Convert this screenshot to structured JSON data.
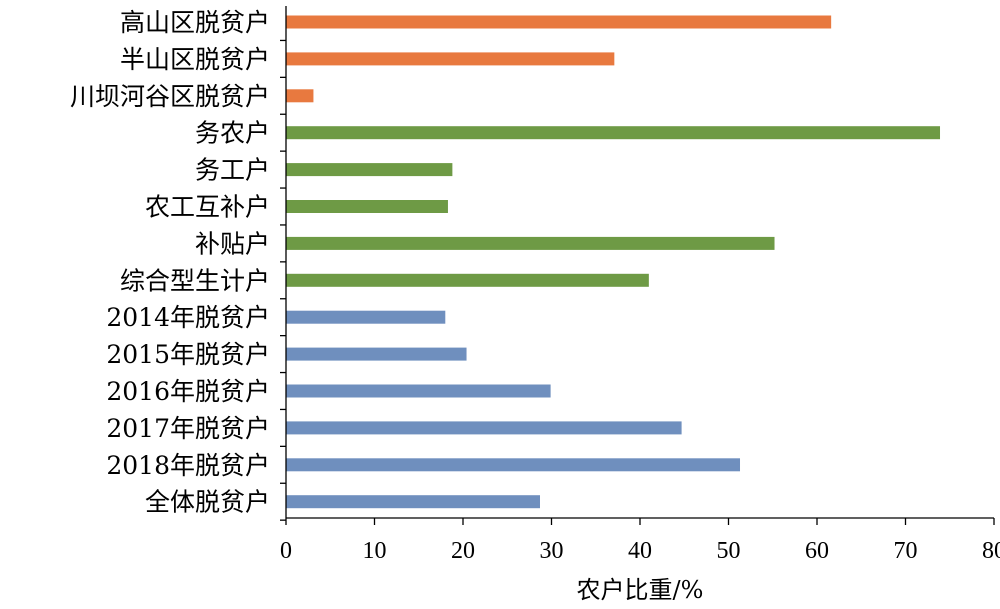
{
  "chart_data": {
    "type": "bar",
    "orientation": "horizontal",
    "title": "",
    "xlabel": "农户比重/%",
    "ylabel": "",
    "xlim": [
      0,
      80
    ],
    "x_ticks": [
      0,
      10,
      20,
      30,
      40,
      50,
      60,
      70,
      80
    ],
    "grid": false,
    "legend": "none",
    "categories": [
      "高山区脱贫户",
      "半山区脱贫户",
      "川坝河谷区脱贫户",
      "务农户",
      "务工户",
      "农工互补户",
      "补贴户",
      "综合型生计户",
      "2014年脱贫户",
      "2015年脱贫户",
      "2016年脱贫户",
      "2017年脱贫户",
      "2018年脱贫户",
      "全体脱贫户"
    ],
    "values": [
      61.6,
      37.1,
      3.1,
      73.9,
      18.8,
      18.3,
      55.2,
      41.0,
      18.0,
      20.4,
      29.9,
      44.7,
      51.3,
      28.7
    ],
    "bar_colors": [
      "#E8793F",
      "#E8793F",
      "#E8793F",
      "#6E9A45",
      "#6E9A45",
      "#6E9A45",
      "#6E9A45",
      "#6E9A45",
      "#6F8FBE",
      "#6F8FBE",
      "#6F8FBE",
      "#6F8FBE",
      "#6F8FBE",
      "#6F8FBE"
    ]
  }
}
